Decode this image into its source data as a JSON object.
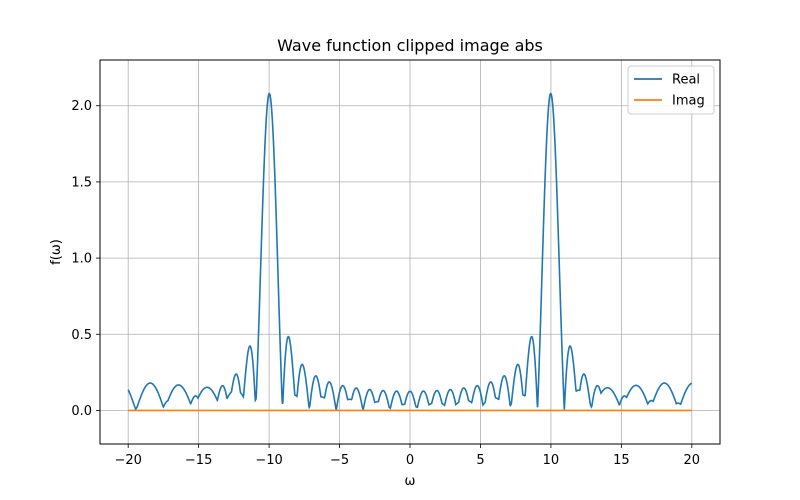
{
  "chart_data": {
    "type": "line",
    "title": "Wave function clipped image abs",
    "xlabel": "ω",
    "ylabel": "f(ω)",
    "xlim": [
      -22,
      22
    ],
    "ylim": [
      -0.22,
      2.3
    ],
    "xticks": [
      -20,
      -15,
      -10,
      -5,
      0,
      5,
      10,
      15,
      20
    ],
    "xtick_labels": [
      "−20",
      "−15",
      "−10",
      "−5",
      "0",
      "5",
      "10",
      "15",
      "20"
    ],
    "yticks": [
      0.0,
      0.5,
      1.0,
      1.5,
      2.0
    ],
    "ytick_labels": [
      "0.0",
      "0.5",
      "1.0",
      "1.5",
      "2.0"
    ],
    "grid": true,
    "legend_position": "upper right",
    "series": [
      {
        "name": "Real",
        "color": "#1f77b4",
        "x_range": [
          -20,
          20
        ],
        "peaks": [
          {
            "x": -10.0,
            "y": 2.08
          },
          {
            "x": 10.0,
            "y": 2.08
          }
        ],
        "secondary_peaks": [
          {
            "x": -10.9,
            "y": 0.64
          },
          {
            "x": -9.1,
            "y": 0.41
          },
          {
            "x": 10.9,
            "y": 0.64
          },
          {
            "x": 9.1,
            "y": 0.41
          }
        ],
        "baseline_level_center": 0.05,
        "baseline_level_edges": 0.17
      },
      {
        "name": "Imag",
        "color": "#ff7f0e",
        "x_range": [
          -20,
          20
        ],
        "constant_value": 0.0
      }
    ]
  }
}
